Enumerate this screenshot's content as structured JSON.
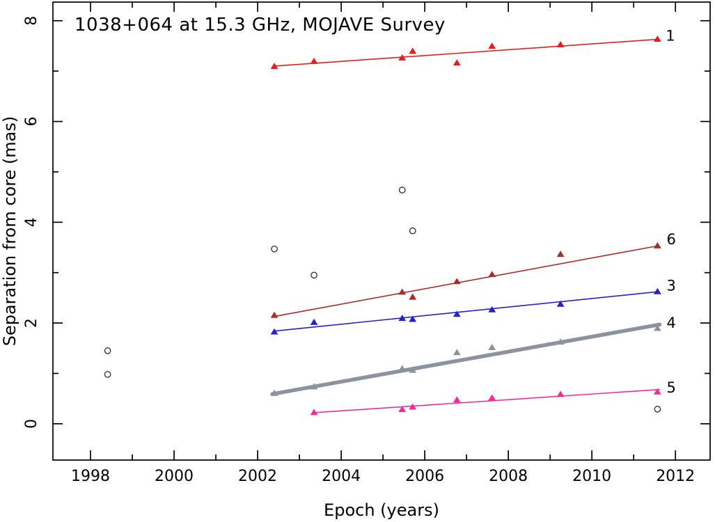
{
  "chart_data": {
    "type": "scatter",
    "title": "1038+064 at 15.3 GHz, MOJAVE Survey",
    "xlabel": "Epoch (years)",
    "ylabel": "Separation from core (mas)",
    "xlim": [
      1997.1,
      2012.83
    ],
    "ylim": [
      -0.72,
      8.37
    ],
    "grid": false,
    "background": "#ffffff",
    "frame_color": "#000000",
    "x_ticks_major": [
      1998,
      2000,
      2002,
      2004,
      2006,
      2008,
      2010,
      2012
    ],
    "x_ticks_minor": [
      1999,
      2001,
      2003,
      2005,
      2007,
      2009,
      2011
    ],
    "x_tick_labels": [
      "1998",
      "2000",
      "2002",
      "2004",
      "2006",
      "2008",
      "2010",
      "2012"
    ],
    "y_ticks_major": [
      0,
      2,
      4,
      6,
      8
    ],
    "y_ticks_minor": [
      1,
      3,
      5,
      7
    ],
    "y_tick_labels": [
      "0",
      "2",
      "4",
      "6",
      "8"
    ],
    "legend_position": "inline-right-labels",
    "series": [
      {
        "name": "component-1",
        "label": "1",
        "marker": "triangle",
        "color": "#e81c1c",
        "label_color": "#f26464",
        "line_width": 1.6,
        "label_pos": [
          2011.88,
          7.7
        ],
        "points": [
          [
            2002.4,
            7.1
          ],
          [
            2003.35,
            7.2
          ],
          [
            2005.46,
            7.27
          ],
          [
            2005.71,
            7.4
          ],
          [
            2006.77,
            7.17
          ],
          [
            2007.61,
            7.5
          ],
          [
            2009.25,
            7.53
          ],
          [
            2011.57,
            7.64
          ]
        ],
        "fit_line": [
          [
            2002.4,
            7.1
          ],
          [
            2011.57,
            7.63
          ]
        ]
      },
      {
        "name": "component-6",
        "label": "6",
        "marker": "triangle",
        "color": "#ab2a2a",
        "label_color": "#c26060",
        "line_width": 1.6,
        "label_pos": [
          2011.9,
          3.66
        ],
        "points": [
          [
            2002.4,
            2.16
          ],
          [
            2005.46,
            2.62
          ],
          [
            2005.71,
            2.52
          ],
          [
            2006.77,
            2.83
          ],
          [
            2007.61,
            2.97
          ],
          [
            2009.25,
            3.37
          ],
          [
            2011.57,
            3.54
          ]
        ],
        "fit_line": [
          [
            2002.4,
            2.13
          ],
          [
            2011.57,
            3.53
          ]
        ]
      },
      {
        "name": "component-3",
        "label": "3",
        "marker": "triangle",
        "color": "#2222cd",
        "label_color": "#6a6ada",
        "line_width": 1.6,
        "label_pos": [
          2011.9,
          2.74
        ],
        "points": [
          [
            2002.4,
            1.83
          ],
          [
            2003.35,
            2.02
          ],
          [
            2005.46,
            2.1
          ],
          [
            2005.71,
            2.08
          ],
          [
            2006.77,
            2.18
          ],
          [
            2007.61,
            2.27
          ],
          [
            2009.25,
            2.38
          ],
          [
            2011.57,
            2.63
          ]
        ],
        "fit_line": [
          [
            2002.4,
            1.84
          ],
          [
            2011.57,
            2.62
          ]
        ]
      },
      {
        "name": "component-4",
        "label": "4",
        "marker": "triangle",
        "color": "#8b949e",
        "label_color": "#aab2ba",
        "line_width": 5.5,
        "label_pos": [
          2011.9,
          2.0
        ],
        "points": [
          [
            2002.4,
            0.61
          ],
          [
            2003.35,
            0.74
          ],
          [
            2005.46,
            1.1
          ],
          [
            2005.71,
            1.07
          ],
          [
            2006.77,
            1.42
          ],
          [
            2007.61,
            1.52
          ],
          [
            2009.25,
            1.63
          ],
          [
            2011.57,
            1.9
          ]
        ],
        "fit_line": [
          [
            2002.35,
            0.59
          ],
          [
            2011.62,
            1.97
          ]
        ]
      },
      {
        "name": "component-5",
        "label": "5",
        "marker": "triangle",
        "color": "#f42b96",
        "label_color": "#f78fc0",
        "line_width": 1.6,
        "label_pos": [
          2011.9,
          0.72
        ],
        "points": [
          [
            2003.35,
            0.23
          ],
          [
            2005.46,
            0.29
          ],
          [
            2005.71,
            0.34
          ],
          [
            2006.77,
            0.48
          ],
          [
            2007.61,
            0.52
          ],
          [
            2009.25,
            0.59
          ],
          [
            2011.57,
            0.64
          ]
        ],
        "fit_line": [
          [
            2003.35,
            0.22
          ],
          [
            2011.62,
            0.68
          ]
        ]
      }
    ],
    "unidentified": {
      "name": "unidentified-components",
      "marker": "open-circle",
      "color": "#2b2b2b",
      "points": [
        [
          1998.41,
          1.45
        ],
        [
          1998.41,
          0.98
        ],
        [
          2002.4,
          3.47
        ],
        [
          2003.35,
          2.95
        ],
        [
          2005.46,
          4.64
        ],
        [
          2005.71,
          3.83
        ],
        [
          2011.57,
          0.29
        ]
      ]
    }
  }
}
